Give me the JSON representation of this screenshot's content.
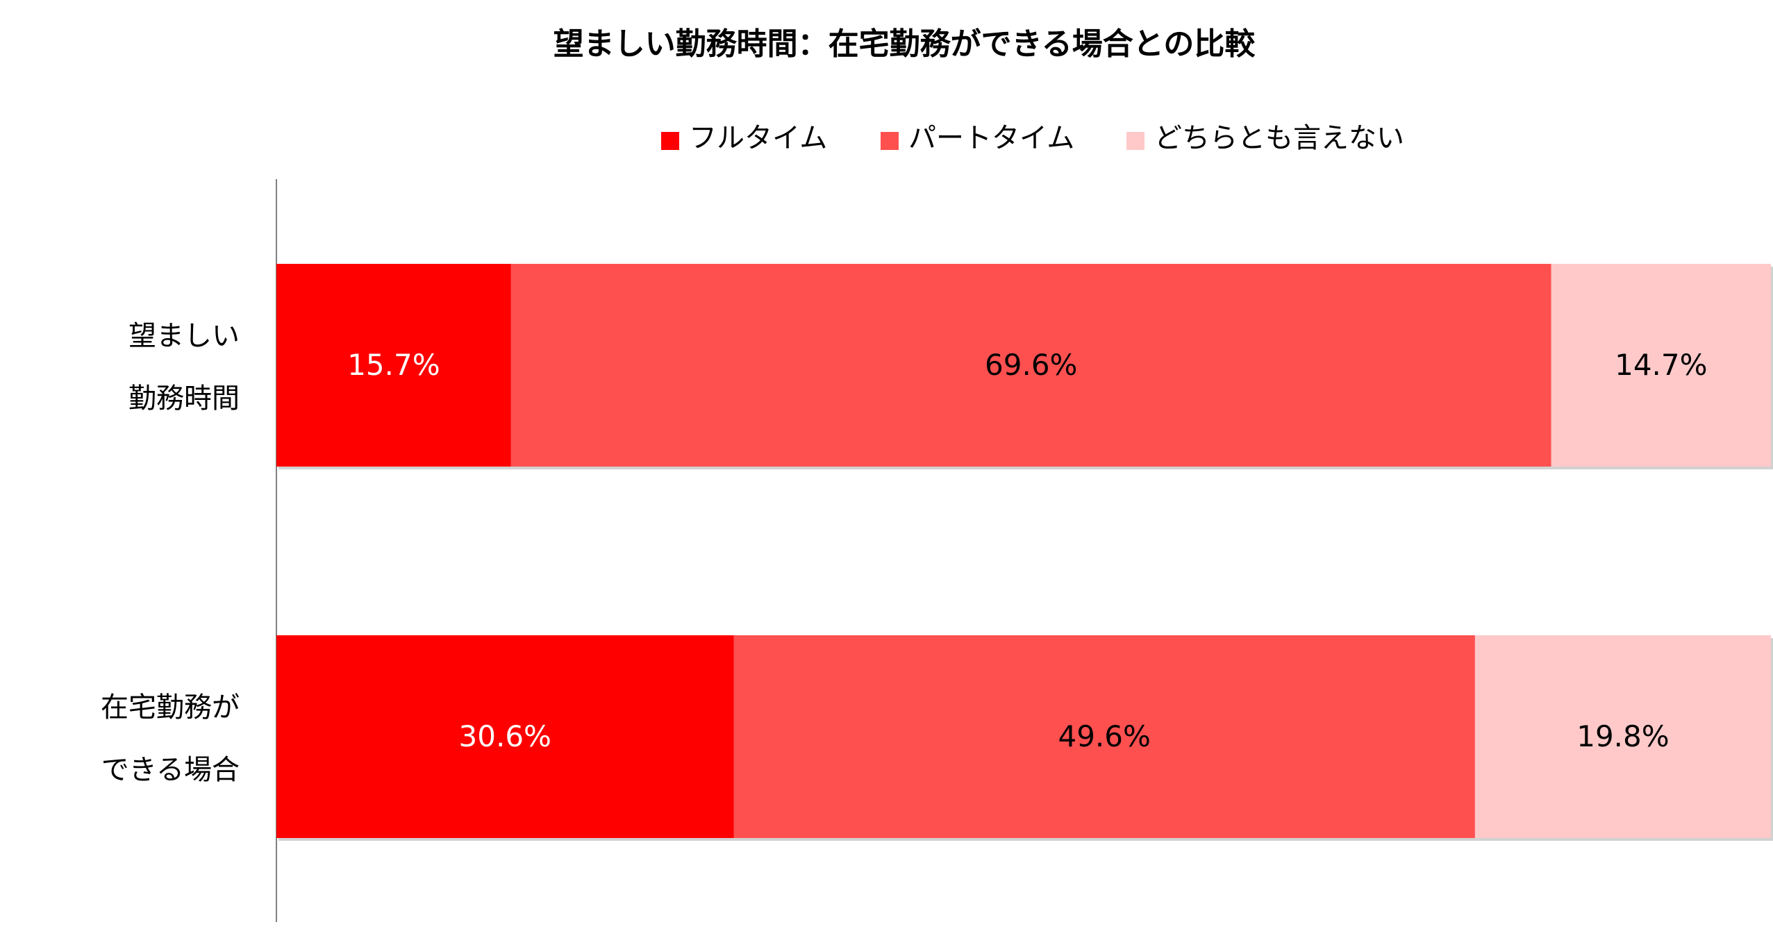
{
  "chart_data": {
    "type": "bar",
    "orientation": "horizontal",
    "stacked": true,
    "title": "望ましい勤務時間：在宅勤務ができる場合との比較",
    "categories": [
      [
        "望ましい",
        "勤務時間"
      ],
      [
        "在宅勤務が",
        "できる場合"
      ]
    ],
    "series": [
      {
        "name": "フルタイム",
        "values": [
          15.7,
          30.6
        ],
        "labels": [
          "15.7%",
          "30.6%"
        ],
        "color": "#ff0000",
        "label_color": "#ffffff"
      },
      {
        "name": "パートタイム",
        "values": [
          69.6,
          49.6
        ],
        "labels": [
          "69.6%",
          "49.6%"
        ],
        "color": "#ff5050",
        "label_color": "#000000"
      },
      {
        "name": "どちらとも言えない",
        "values": [
          14.7,
          19.8
        ],
        "labels": [
          "14.7%",
          "19.8%"
        ],
        "color": "#ffc9c9",
        "label_color": "#000000"
      }
    ],
    "xlim": [
      0,
      100
    ],
    "legend_position": "top",
    "grid": false
  }
}
